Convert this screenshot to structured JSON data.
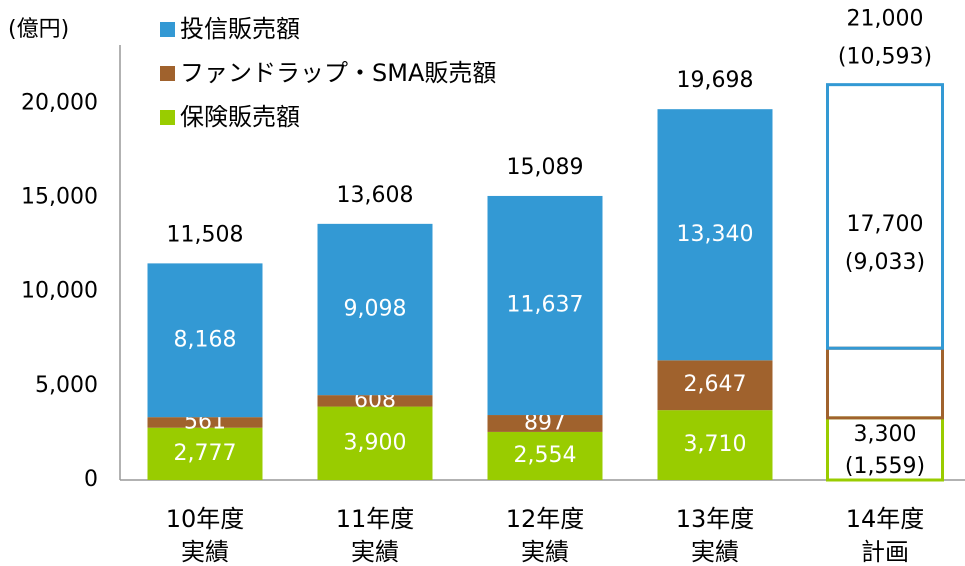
{
  "chart_data": {
    "type": "stacked_bar",
    "y_label": "(億円)",
    "categories": [
      [
        "10年度",
        "実績"
      ],
      [
        "11年度",
        "実績"
      ],
      [
        "12年度",
        "実績"
      ],
      [
        "13年度",
        "実績"
      ],
      [
        "14年度",
        "計画"
      ]
    ],
    "outlined": [
      false,
      false,
      false,
      false,
      true
    ],
    "series": [
      {
        "name": "保険販売額",
        "color": "#99cc00",
        "values": [
          2777,
          3900,
          2554,
          3710,
          3300
        ],
        "value_labels": [
          "2,777",
          "3,900",
          "2,554",
          "3,710",
          "3,300"
        ]
      },
      {
        "name": "ファンドラップ・SMA販売額",
        "color": "#a0622d",
        "values": [
          561,
          608,
          897,
          2647,
          3700
        ],
        "value_labels": [
          "561",
          "608",
          "897",
          "2,647",
          null
        ]
      },
      {
        "name": "投信販売額",
        "color": "#3399d4",
        "values": [
          8168,
          9098,
          11637,
          13340,
          14000
        ],
        "value_labels": [
          "8,168",
          "9,098",
          "11,637",
          "13,340",
          null
        ]
      }
    ],
    "totals": [
      11508,
      13608,
      15089,
      19698,
      21000
    ],
    "total_labels": [
      "11,508",
      "13,608",
      "15,089",
      "19,698",
      "21,000"
    ],
    "plan_annotations": {
      "combined": "17,700",
      "combined_note": "(9,033)",
      "insurance_note": "(1,559)",
      "total_note": "(10,593)"
    },
    "ylim": [
      0,
      23000
    ],
    "yticks": [
      0,
      {
        "value": 5000,
        "label": "5,000"
      },
      {
        "value": 10000,
        "label": "10,000"
      },
      {
        "value": 15000,
        "label": "15,000"
      },
      {
        "value": 20000,
        "label": "20,000"
      }
    ],
    "legend_order": [
      2,
      1,
      0
    ]
  }
}
